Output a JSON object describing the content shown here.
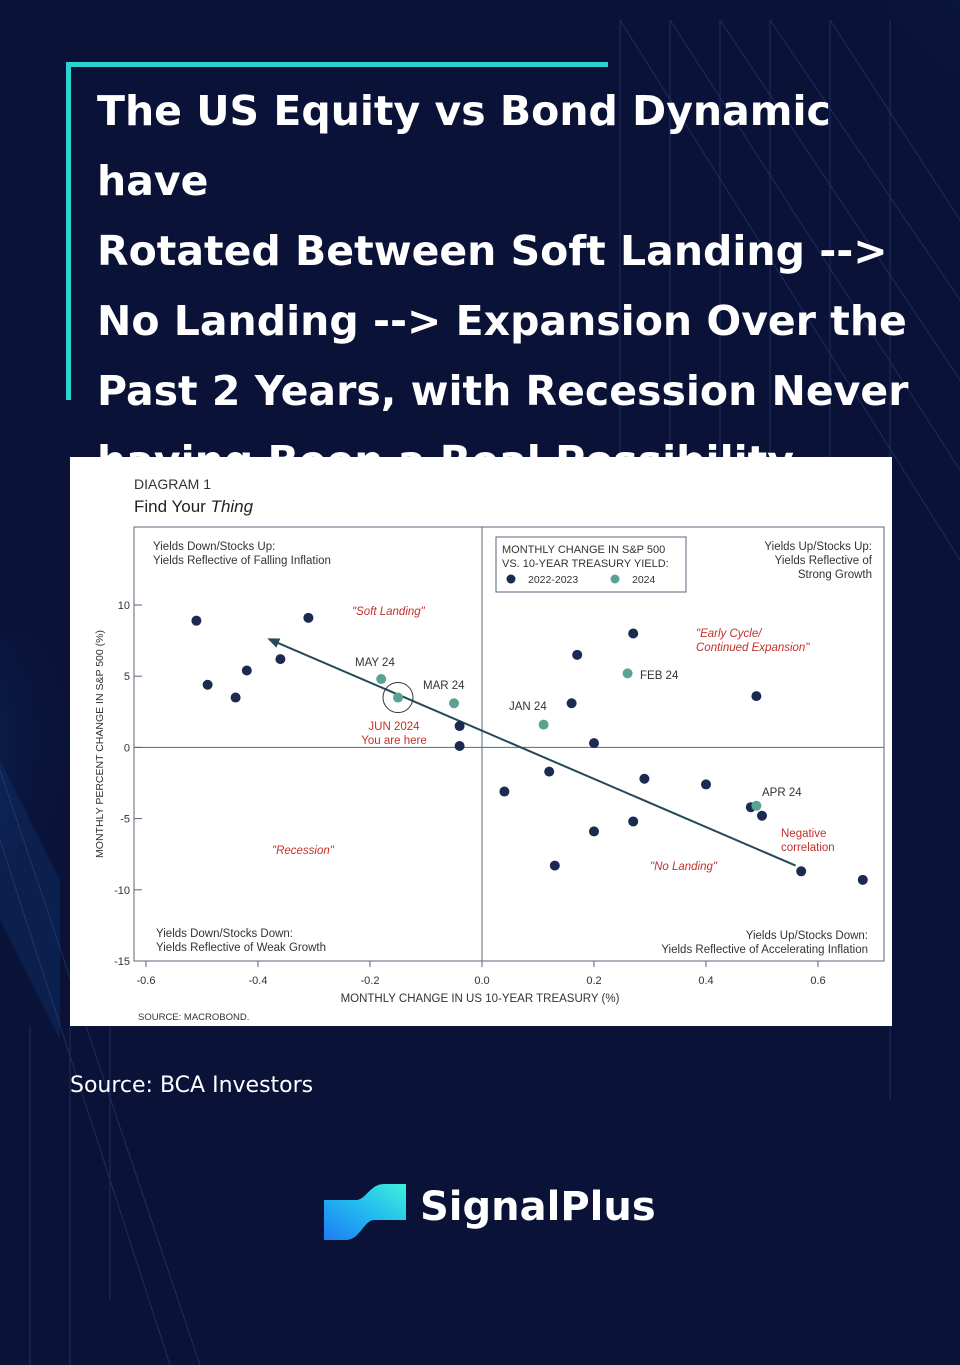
{
  "headline": {
    "line1": "The US Equity vs Bond Dynamic have",
    "line2": "Rotated Between Soft Landing -->",
    "line3": "No Landing --> Expansion Over the",
    "line4": "Past 2 Years, with Recession Never",
    "line5": "having Been a Real Possibility"
  },
  "source": "Source: BCA Investors",
  "brand": {
    "name": "SignalPlus"
  },
  "colors": {
    "background": "#0a1238",
    "accent": "#2bd4d1",
    "navy_dot": "#1c2a52",
    "teal_dot": "#5aa394",
    "annotation_red": "#c4302b"
  },
  "chart_data": {
    "type": "scatter",
    "diagram_label": "DIAGRAM 1",
    "title_plain": "Find Your ",
    "title_italic": "Thing",
    "xlabel": "MONTHLY CHANGE IN US 10-YEAR TREASURY (%)",
    "ylabel": "MONTHLY PERCENT CHANGE IN S&P 500 (%)",
    "xlim": [
      -0.6,
      0.7
    ],
    "ylim": [
      -15,
      14
    ],
    "x_ticks": [
      "-0.6",
      "-0.4",
      "-0.2",
      "0.0",
      "0.2",
      "0.4",
      "0.6"
    ],
    "x_tick_values": [
      -0.6,
      -0.4,
      -0.2,
      0.0,
      0.2,
      0.4,
      0.6
    ],
    "y_ticks": [
      "10",
      "5",
      "0",
      "-5",
      "-10",
      "-15"
    ],
    "y_tick_values": [
      10,
      5,
      0,
      -5,
      -10,
      -15
    ],
    "source_note": "SOURCE: MACROBOND.",
    "legend": {
      "title1": "MONTHLY CHANGE IN S&P 500",
      "title2": "VS. 10-YEAR TREASURY YIELD:",
      "entry1": "2022-2023",
      "entry2": "2024"
    },
    "quadrants": {
      "top_left_1": "Yields Down/Stocks Up:",
      "top_left_2": "Yields Reflective of Falling Inflation",
      "top_right_1": "Yields Up/Stocks Up:",
      "top_right_2": "Yields Reflective of",
      "top_right_3": "Strong Growth",
      "bottom_left_1": "Yields Down/Stocks Down:",
      "bottom_left_2": "Yields Reflective of Weak Growth",
      "bottom_right_1": "Yields Up/Stocks Down:",
      "bottom_right_2": "Yields Reflective of Accelerating Inflation"
    },
    "regimes": {
      "soft_landing": "\"Soft Landing\"",
      "early_cycle_1": "\"Early Cycle/",
      "early_cycle_2": "Continued Expansion\"",
      "recession": "\"Recession\"",
      "no_landing": "\"No Landing\""
    },
    "annotations": {
      "may24": "MAY 24",
      "mar24": "MAR 24",
      "jan24": "JAN 24",
      "feb24": "FEB 24",
      "apr24": "APR 24",
      "jun_1": "JUN 2024",
      "jun_2": "You are here",
      "neg_1": "Negative",
      "neg_2": "correlation"
    },
    "series": [
      {
        "name": "2022-2023",
        "color": "#1c2a52",
        "points": [
          [
            -0.51,
            8.9
          ],
          [
            -0.49,
            4.4
          ],
          [
            -0.44,
            3.5
          ],
          [
            -0.42,
            5.4
          ],
          [
            -0.36,
            6.2
          ],
          [
            -0.31,
            9.1
          ],
          [
            -0.04,
            1.5
          ],
          [
            -0.04,
            0.1
          ],
          [
            0.04,
            -3.1
          ],
          [
            0.12,
            -1.7
          ],
          [
            0.13,
            -8.3
          ],
          [
            0.16,
            3.1
          ],
          [
            0.17,
            6.5
          ],
          [
            0.2,
            0.3
          ],
          [
            0.2,
            -5.9
          ],
          [
            0.27,
            8.0
          ],
          [
            0.27,
            -5.2
          ],
          [
            0.29,
            -2.2
          ],
          [
            0.4,
            -2.6
          ],
          [
            0.48,
            -4.2
          ],
          [
            0.49,
            3.6
          ],
          [
            0.5,
            -4.8
          ],
          [
            0.57,
            -8.7
          ],
          [
            0.68,
            -9.3
          ]
        ]
      },
      {
        "name": "2024",
        "color": "#5aa394",
        "points": [
          [
            -0.18,
            4.8
          ],
          [
            -0.15,
            3.5
          ],
          [
            -0.05,
            3.1
          ],
          [
            0.11,
            1.6
          ],
          [
            0.26,
            5.2
          ],
          [
            0.49,
            -4.1
          ]
        ]
      }
    ],
    "arrow": {
      "from": [
        0.56,
        -8.3
      ],
      "to": [
        -0.38,
        7.6
      ]
    },
    "highlight_point": [
      -0.15,
      3.5
    ]
  }
}
